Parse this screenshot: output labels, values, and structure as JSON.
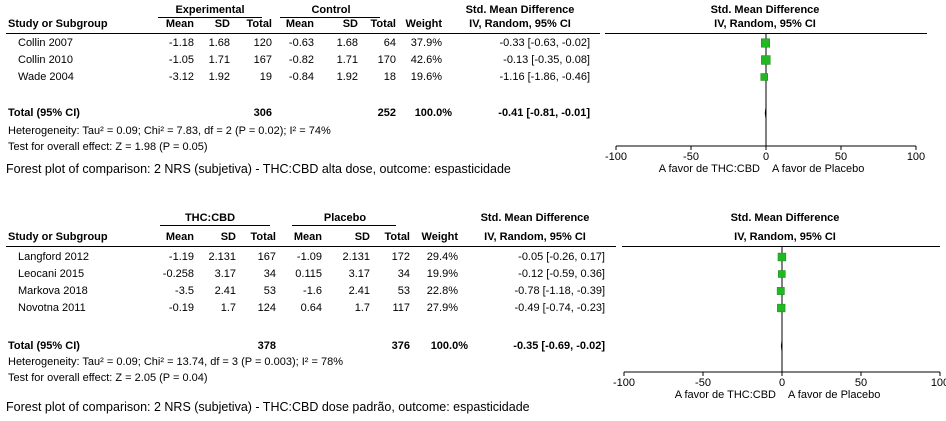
{
  "chart_data": [
    {
      "type": "forest",
      "headers": {
        "group1": "Experimental",
        "group2": "Control",
        "study": "Study or Subgroup",
        "mean": "Mean",
        "sd": "SD",
        "total": "Total",
        "weight": "Weight",
        "effect_title": "Std. Mean Difference",
        "effect_method": "IV, Random, 95% CI"
      },
      "studies": [
        {
          "name": "Collin 2007",
          "mean1": "-1.18",
          "sd1": "1.68",
          "n1": "120",
          "mean2": "-0.63",
          "sd2": "1.68",
          "n2": "64",
          "weight": "37.9%",
          "ci_text": "-0.33 [-0.63, -0.02]",
          "est": -0.33,
          "lo": -0.63,
          "hi": -0.02,
          "w": 37.9
        },
        {
          "name": "Collin 2010",
          "mean1": "-1.05",
          "sd1": "1.71",
          "n1": "167",
          "mean2": "-0.82",
          "sd2": "1.71",
          "n2": "170",
          "weight": "42.6%",
          "ci_text": "-0.13 [-0.35, 0.08]",
          "est": -0.13,
          "lo": -0.35,
          "hi": 0.08,
          "w": 42.6
        },
        {
          "name": "Wade 2004",
          "mean1": "-3.12",
          "sd1": "1.92",
          "n1": "19",
          "mean2": "-0.84",
          "sd2": "1.92",
          "n2": "18",
          "weight": "19.6%",
          "ci_text": "-1.16 [-1.86, -0.46]",
          "est": -1.16,
          "lo": -1.86,
          "hi": -0.46,
          "w": 19.6
        }
      ],
      "total": {
        "label": "Total (95% CI)",
        "n1": "306",
        "n2": "252",
        "weight": "100.0%",
        "ci_text": "-0.41 [-0.81, -0.01]",
        "est": -0.41,
        "lo": -0.81,
        "hi": -0.01
      },
      "heterogeneity": "Heterogeneity: Tau² = 0.09; Chi² = 7.83, df = 2 (P = 0.02); I² = 74%",
      "overall_effect": "Test for overall effect: Z = 1.98 (P = 0.05)",
      "xlim": [
        -100,
        100
      ],
      "ticks": [
        "-100",
        "-50",
        "0",
        "50",
        "100"
      ],
      "tick_values": [
        -100,
        -50,
        0,
        50,
        100
      ],
      "favours_left": "A favor de THC:CBD",
      "favours_right": "A favor de Placebo",
      "caption": "Forest plot of comparison: 2 NRS (subjetiva) - THC:CBD alta dose, outcome: espasticidade"
    },
    {
      "type": "forest",
      "headers": {
        "group1": "THC:CBD",
        "group2": "Placebo",
        "study": "Study or Subgroup",
        "mean": "Mean",
        "sd": "SD",
        "total": "Total",
        "weight": "Weight",
        "effect_title": "Std. Mean Difference",
        "effect_method": "IV, Random, 95% CI"
      },
      "studies": [
        {
          "name": "Langford 2012",
          "mean1": "-1.19",
          "sd1": "2.131",
          "n1": "167",
          "mean2": "-1.09",
          "sd2": "2.131",
          "n2": "172",
          "weight": "29.4%",
          "ci_text": "-0.05 [-0.26, 0.17]",
          "est": -0.05,
          "lo": -0.26,
          "hi": 0.17,
          "w": 29.4
        },
        {
          "name": "Leocani 2015",
          "mean1": "-0.258",
          "sd1": "3.17",
          "n1": "34",
          "mean2": "0.115",
          "sd2": "3.17",
          "n2": "34",
          "weight": "19.9%",
          "ci_text": "-0.12 [-0.59, 0.36]",
          "est": -0.12,
          "lo": -0.59,
          "hi": 0.36,
          "w": 19.9
        },
        {
          "name": "Markova 2018",
          "mean1": "-3.5",
          "sd1": "2.41",
          "n1": "53",
          "mean2": "-1.6",
          "sd2": "2.41",
          "n2": "53",
          "weight": "22.8%",
          "ci_text": "-0.78 [-1.18, -0.39]",
          "est": -0.78,
          "lo": -1.18,
          "hi": -0.39,
          "w": 22.8
        },
        {
          "name": "Novotna 2011",
          "mean1": "-0.19",
          "sd1": "1.7",
          "n1": "124",
          "mean2": "0.64",
          "sd2": "1.7",
          "n2": "117",
          "weight": "27.9%",
          "ci_text": "-0.49 [-0.74, -0.23]",
          "est": -0.49,
          "lo": -0.74,
          "hi": -0.23,
          "w": 27.9
        }
      ],
      "total": {
        "label": "Total (95% CI)",
        "n1": "378",
        "n2": "376",
        "weight": "100.0%",
        "ci_text": "-0.35 [-0.69, -0.02]",
        "est": -0.35,
        "lo": -0.69,
        "hi": -0.02
      },
      "heterogeneity": "Heterogeneity: Tau² = 0.09; Chi² = 13.74, df = 3 (P = 0.003); I² = 78%",
      "overall_effect": "Test for overall effect: Z = 2.05 (P = 0.04)",
      "xlim": [
        -100,
        100
      ],
      "ticks": [
        "-100",
        "-50",
        "0",
        "50",
        "100"
      ],
      "tick_values": [
        -100,
        -50,
        0,
        50,
        100
      ],
      "favours_left": "A favor de THC:CBD",
      "favours_right": "A favor de Placebo",
      "caption": "Forest plot of comparison: 2 NRS (subjetiva) - THC:CBD dose padrão, outcome: espasticidade"
    }
  ],
  "colors": {
    "study_marker": "#22b822",
    "marker_edge": "#178a17",
    "diamond": "#000000"
  }
}
